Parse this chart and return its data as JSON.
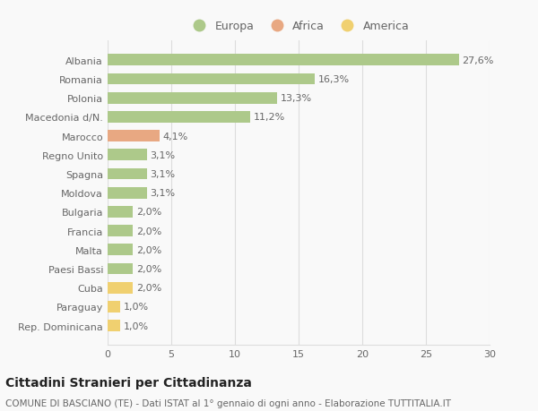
{
  "categories": [
    "Albania",
    "Romania",
    "Polonia",
    "Macedonia d/N.",
    "Marocco",
    "Regno Unito",
    "Spagna",
    "Moldova",
    "Bulgaria",
    "Francia",
    "Malta",
    "Paesi Bassi",
    "Cuba",
    "Paraguay",
    "Rep. Dominicana"
  ],
  "values": [
    27.6,
    16.3,
    13.3,
    11.2,
    4.1,
    3.1,
    3.1,
    3.1,
    2.0,
    2.0,
    2.0,
    2.0,
    2.0,
    1.0,
    1.0
  ],
  "labels": [
    "27,6%",
    "16,3%",
    "13,3%",
    "11,2%",
    "4,1%",
    "3,1%",
    "3,1%",
    "3,1%",
    "2,0%",
    "2,0%",
    "2,0%",
    "2,0%",
    "2,0%",
    "1,0%",
    "1,0%"
  ],
  "continent": [
    "Europa",
    "Europa",
    "Europa",
    "Europa",
    "Africa",
    "Europa",
    "Europa",
    "Europa",
    "Europa",
    "Europa",
    "Europa",
    "Europa",
    "America",
    "America",
    "America"
  ],
  "colors": {
    "Europa": "#adc98a",
    "Africa": "#e8a882",
    "America": "#f0d070"
  },
  "legend_order": [
    "Europa",
    "Africa",
    "America"
  ],
  "legend_colors": [
    "#adc98a",
    "#e8a882",
    "#f0d070"
  ],
  "xlim": [
    0,
    30
  ],
  "xticks": [
    0,
    5,
    10,
    15,
    20,
    25,
    30
  ],
  "title": "Cittadini Stranieri per Cittadinanza",
  "subtitle": "COMUNE DI BASCIANO (TE) - Dati ISTAT al 1° gennaio di ogni anno - Elaborazione TUTTITALIA.IT",
  "background_color": "#f9f9f9",
  "grid_color": "#dddddd",
  "bar_height": 0.6,
  "title_fontsize": 10,
  "subtitle_fontsize": 7.5,
  "label_fontsize": 8,
  "tick_fontsize": 8,
  "legend_fontsize": 9
}
